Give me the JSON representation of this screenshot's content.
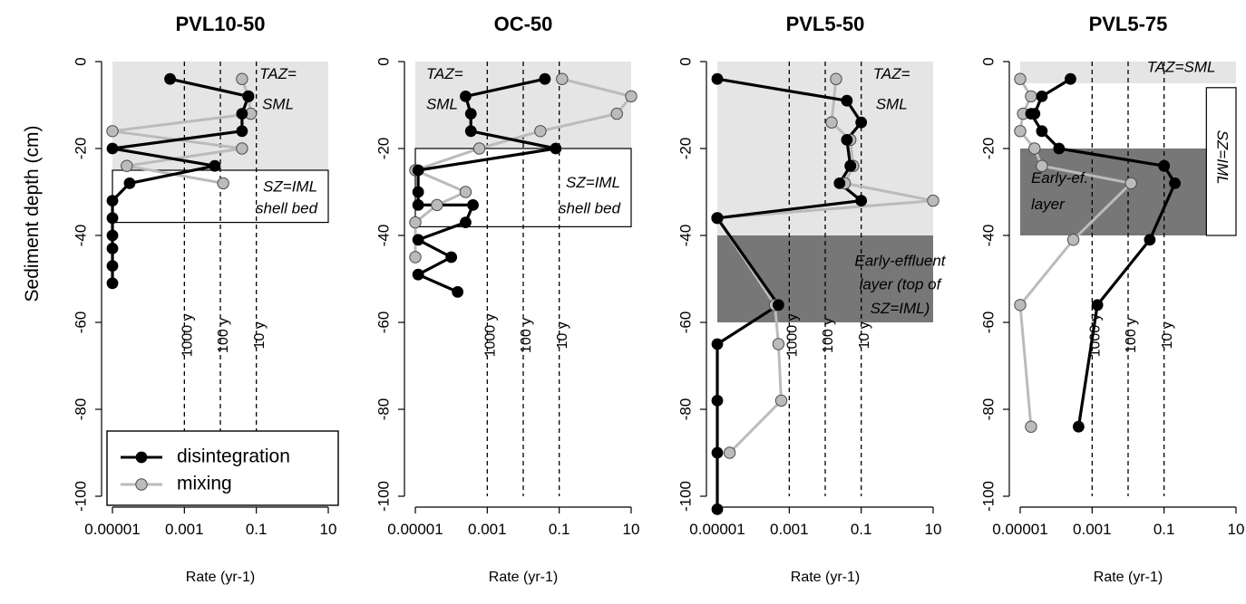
{
  "figure": {
    "ylabel": "Sediment depth (cm)",
    "xlabel": "Rate (yr-1)"
  },
  "colors": {
    "disintegration": "#000000",
    "mixing": "#bbbbbb",
    "light_zone": "#e5e5e5",
    "dark_zone": "#777777"
  },
  "legend": {
    "position": "bottom-left",
    "items": [
      {
        "label": "disintegration",
        "color": "#000000"
      },
      {
        "label": "mixing",
        "color": "#bbbbbb"
      }
    ]
  },
  "chart_data": [
    {
      "type": "line",
      "title": "PVL10-50",
      "xscale": "log10",
      "xlim": [
        1e-05,
        10
      ],
      "ylim": [
        -100,
        0
      ],
      "xticks": [
        1e-05,
        0.001,
        0.1,
        10
      ],
      "xtick_labels": [
        "0.00001",
        "0.001",
        "0.1",
        "10"
      ],
      "yticks": [
        0,
        -20,
        -40,
        -60,
        -80,
        -100
      ],
      "ytick_labels": [
        "0",
        "-20",
        "-40",
        "-60",
        "-80",
        "-100"
      ],
      "reference_lines": [
        {
          "x": 0.001,
          "label": "1000 y"
        },
        {
          "x": 0.01,
          "label": "100 y"
        },
        {
          "x": 0.1,
          "label": "10 y"
        }
      ],
      "zones": [
        {
          "style": "light",
          "x": [
            1e-05,
            10
          ],
          "y": [
            -25,
            0
          ],
          "label_lines": [
            "TAZ=",
            "SML"
          ],
          "label_x": 0.4,
          "label_y": [
            -3,
            -10
          ],
          "anchor": "middle"
        },
        {
          "style": "box",
          "x": [
            1e-05,
            10
          ],
          "y": [
            -37,
            -25
          ],
          "label_lines": [
            "SZ=IML",
            "shell bed"
          ],
          "label_x": 5,
          "label_y": [
            -29,
            -34
          ],
          "anchor": "end"
        }
      ],
      "series": [
        {
          "name": "disintegration",
          "x": [
            0.0004,
            0.06,
            0.04,
            0.04,
            1e-05,
            0.007,
            3e-05,
            1e-05,
            1e-05,
            1e-05,
            1e-05,
            1e-05,
            1e-05
          ],
          "y": [
            -4,
            -8,
            -12,
            -16,
            -20,
            -24,
            -28,
            -32,
            -36,
            -40,
            -43,
            -47,
            -51
          ]
        },
        {
          "name": "mixing",
          "x": [
            0.04,
            0.06,
            0.07,
            1e-05,
            0.04,
            2.5e-05,
            0.012
          ],
          "y": [
            -4,
            -8,
            -12,
            -16,
            -20,
            -24,
            -28
          ]
        }
      ]
    },
    {
      "type": "line",
      "title": "OC-50",
      "xscale": "log10",
      "xlim": [
        1e-05,
        10
      ],
      "ylim": [
        -100,
        0
      ],
      "xticks": [
        1e-05,
        0.001,
        0.1,
        10
      ],
      "xtick_labels": [
        "0.00001",
        "0.001",
        "0.1",
        "10"
      ],
      "yticks": [
        0,
        -20,
        -40,
        -60,
        -80,
        -100
      ],
      "ytick_labels": [
        "0",
        "-20",
        "-40",
        "-60",
        "-80",
        "-100"
      ],
      "reference_lines": [
        {
          "x": 0.001,
          "label": "1000 y"
        },
        {
          "x": 0.01,
          "label": "100 y"
        },
        {
          "x": 0.1,
          "label": "10 y"
        }
      ],
      "zones": [
        {
          "style": "light",
          "x": [
            1e-05,
            10
          ],
          "y": [
            -20,
            0
          ],
          "label_lines": [
            "TAZ=",
            "SML"
          ],
          "label_x": 2e-05,
          "label_y": [
            -3,
            -10
          ],
          "anchor": "start"
        },
        {
          "style": "box",
          "x": [
            1e-05,
            10
          ],
          "y": [
            -38,
            -20
          ],
          "label_lines": [
            "SZ=IML",
            "shell bed"
          ],
          "label_x": 5,
          "label_y": [
            -28,
            -34
          ],
          "anchor": "end"
        }
      ],
      "series": [
        {
          "name": "disintegration",
          "x": [
            0.04,
            0.00025,
            0.00035,
            0.00035,
            0.08,
            1.2e-05,
            1.2e-05,
            1.2e-05,
            0.0004,
            0.00025,
            1.2e-05,
            0.0001,
            1.2e-05,
            0.00015
          ],
          "y": [
            -4,
            -8,
            -12,
            -16,
            -20,
            -25,
            -30,
            -33,
            -33,
            -37,
            -41,
            -45,
            -49,
            -53
          ]
        },
        {
          "name": "mixing",
          "x": [
            0.12,
            10,
            4,
            0.03,
            0.0006,
            1e-05,
            0.00025,
            4e-05,
            1e-05,
            1e-05
          ],
          "y": [
            -4,
            -8,
            -12,
            -16,
            -20,
            -25,
            -30,
            -33,
            -37,
            -45
          ]
        }
      ]
    },
    {
      "type": "line",
      "title": "PVL5-50",
      "xscale": "log10",
      "xlim": [
        1e-05,
        10
      ],
      "ylim": [
        -100,
        0
      ],
      "xticks": [
        1e-05,
        0.001,
        0.1,
        10
      ],
      "xtick_labels": [
        "0.00001",
        "0.001",
        "0.1",
        "10"
      ],
      "yticks": [
        0,
        -20,
        -40,
        -60,
        -80,
        -100
      ],
      "ytick_labels": [
        "0",
        "-20",
        "-40",
        "-60",
        "-80",
        "-100"
      ],
      "reference_lines": [
        {
          "x": 0.001,
          "label": "1000 y"
        },
        {
          "x": 0.01,
          "label": "100 y"
        },
        {
          "x": 0.1,
          "label": "10 y"
        }
      ],
      "zones": [
        {
          "style": "light",
          "x": [
            1e-05,
            10
          ],
          "y": [
            -40,
            0
          ],
          "label_lines": [
            "TAZ=",
            "SML"
          ],
          "label_x": 0.7,
          "label_y": [
            -3,
            -10
          ],
          "anchor": "middle"
        },
        {
          "style": "dark",
          "x": [
            1e-05,
            10
          ],
          "y": [
            -60,
            -40
          ],
          "label_lines": [
            "Early-effluent",
            "layer (top of",
            "SZ=IML)"
          ],
          "label_x": 1.2,
          "label_y": [
            -46,
            -51.5,
            -57
          ],
          "anchor": "middle"
        }
      ],
      "series": [
        {
          "name": "disintegration",
          "x": [
            1e-05,
            0.04,
            0.1,
            0.04,
            0.05,
            0.05,
            0.025,
            0.1,
            1e-05,
            0.0005,
            1e-05,
            1e-05,
            1e-05,
            1e-05
          ],
          "y": [
            -4,
            -9,
            -14,
            -18,
            -24,
            -24,
            -28,
            -32,
            -36,
            -56,
            -65,
            -78,
            -90,
            -103
          ]
        },
        {
          "name": "mixing",
          "x": [
            0.02,
            0.015,
            0.05,
            0.06,
            0.035,
            10,
            1e-05,
            0.0004,
            0.0005,
            0.0006,
            2.2e-05
          ],
          "y": [
            -4,
            -14,
            -18,
            -24,
            -28,
            -32,
            -36,
            -56,
            -65,
            -78,
            -90
          ]
        }
      ]
    },
    {
      "type": "line",
      "title": "PVL5-75",
      "xscale": "log10",
      "xlim": [
        1e-05,
        10
      ],
      "ylim": [
        -100,
        0
      ],
      "xticks": [
        1e-05,
        0.001,
        0.1,
        10
      ],
      "xtick_labels": [
        "0.00001",
        "0.001",
        "0.1",
        "10"
      ],
      "yticks": [
        0,
        -20,
        -40,
        -60,
        -80,
        -100
      ],
      "ytick_labels": [
        "0",
        "-20",
        "-40",
        "-60",
        "-80",
        "-100"
      ],
      "reference_lines": [
        {
          "x": 0.001,
          "label": "1000 y"
        },
        {
          "x": 0.01,
          "label": "100 y"
        },
        {
          "x": 0.1,
          "label": "10 y"
        }
      ],
      "zones": [
        {
          "style": "light",
          "x": [
            1e-05,
            10
          ],
          "y": [
            -5,
            0
          ],
          "label_lines": [
            "TAZ=SML"
          ],
          "label_x": 0.3,
          "label_y": [
            -1.5
          ],
          "anchor": "middle"
        },
        {
          "style": "dark",
          "x": [
            1e-05,
            1.5
          ],
          "y": [
            -40,
            -20
          ],
          "label_lines": [
            "Early-ef.",
            "layer"
          ],
          "label_x": 2e-05,
          "label_y": [
            -27,
            -33
          ],
          "anchor": "start"
        },
        {
          "style": "box",
          "x": [
            1.5,
            10
          ],
          "y": [
            -40,
            -6
          ],
          "label_lines": [
            "SZ=IML"
          ],
          "label_x": 4,
          "label_y": [
            -22
          ],
          "anchor": "middle",
          "rotate": 90
        }
      ],
      "series": [
        {
          "name": "disintegration",
          "x": [
            0.00025,
            4e-05,
            2.5e-05,
            2e-05,
            4e-05,
            0.00012,
            0.1,
            0.2,
            0.04,
            0.0014,
            0.00042
          ],
          "y": [
            -4,
            -8,
            -12,
            -12,
            -16,
            -20,
            -24,
            -28,
            -41,
            -56,
            -84
          ]
        },
        {
          "name": "mixing",
          "x": [
            1e-05,
            2e-05,
            1.2e-05,
            1e-05,
            2.5e-05,
            4e-05,
            0.012,
            0.0003,
            1e-05,
            2e-05
          ],
          "y": [
            -4,
            -8,
            -12,
            -16,
            -20,
            -24,
            -28,
            -41,
            -56,
            -84
          ]
        }
      ]
    }
  ]
}
